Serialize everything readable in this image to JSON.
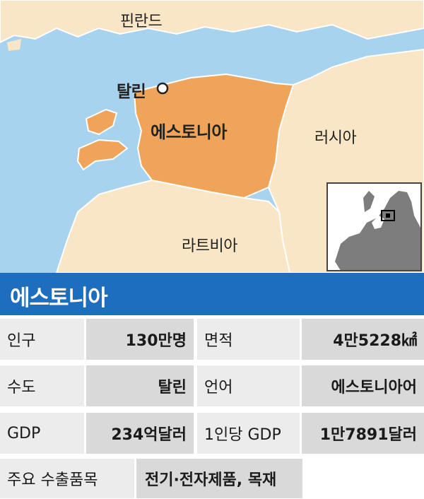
{
  "map": {
    "labels": {
      "finland": "핀란드",
      "tallinn": "탈린",
      "estonia": "에스토니아",
      "russia": "러시아",
      "latvia": "라트비아"
    },
    "colors": {
      "sea": "#a8d3ef",
      "land": "#f9e6c6",
      "estonia": "#f0a45a",
      "border": "#ffffff"
    }
  },
  "title": "에스토니아",
  "table": {
    "rows": [
      {
        "label1": "인구",
        "value1": "130만명",
        "label2": "면적",
        "value2": "4만5228㎢"
      },
      {
        "label1": "수도",
        "value1": "탈린",
        "label2": "언어",
        "value2": "에스토니아어"
      },
      {
        "label1": "GDP",
        "value1": "234억달러",
        "label2": "1인당 GDP",
        "value2": "1만7891달러"
      }
    ],
    "exports": {
      "label": "주요 수출품목",
      "value": "전기·전자제품, 목재"
    }
  },
  "colors": {
    "title_bar": "#1e6ec0"
  }
}
